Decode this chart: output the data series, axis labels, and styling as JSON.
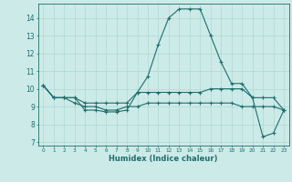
{
  "xlabel": "Humidex (Indice chaleur)",
  "xlim": [
    -0.5,
    23.5
  ],
  "ylim": [
    6.8,
    14.8
  ],
  "yticks": [
    7,
    8,
    9,
    10,
    11,
    12,
    13,
    14
  ],
  "xticks": [
    0,
    1,
    2,
    3,
    4,
    5,
    6,
    7,
    8,
    9,
    10,
    11,
    12,
    13,
    14,
    15,
    16,
    17,
    18,
    19,
    20,
    21,
    22,
    23
  ],
  "background_color": "#cceae7",
  "grid_color": "#b0d8d4",
  "line_color": "#1e6e6e",
  "series": [
    [
      10.2,
      9.5,
      9.5,
      9.5,
      8.8,
      8.8,
      8.7,
      8.7,
      8.8,
      9.8,
      10.7,
      12.5,
      14.0,
      14.5,
      14.5,
      14.5,
      13.0,
      11.5,
      10.3,
      10.3,
      9.5,
      7.3,
      7.5,
      8.8
    ],
    [
      10.2,
      9.5,
      9.5,
      9.5,
      9.2,
      9.2,
      9.2,
      9.2,
      9.2,
      9.8,
      9.8,
      9.8,
      9.8,
      9.8,
      9.8,
      9.8,
      10.0,
      10.0,
      10.0,
      10.0,
      9.5,
      9.5,
      9.5,
      8.8
    ],
    [
      10.2,
      9.5,
      9.5,
      9.2,
      9.0,
      9.0,
      8.8,
      8.8,
      9.0,
      9.0,
      9.2,
      9.2,
      9.2,
      9.2,
      9.2,
      9.2,
      9.2,
      9.2,
      9.2,
      9.0,
      9.0,
      9.0,
      9.0,
      8.8
    ]
  ]
}
